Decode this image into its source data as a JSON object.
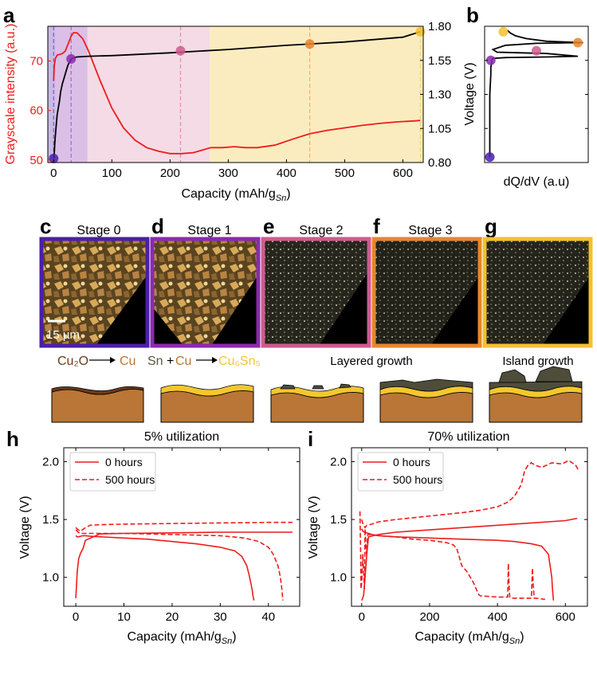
{
  "panel_letters": [
    "a",
    "b",
    "c",
    "d",
    "e",
    "f",
    "g",
    "h",
    "i"
  ],
  "colors": {
    "red": "#ee1c1c",
    "black": "#000000",
    "stage0": "#4b1fa8",
    "stage1": "#8a2ab0",
    "stage2": "#cf5a8e",
    "stage3": "#e8852f",
    "stage4": "#f2c12e",
    "cu": "#b97636",
    "tin": "#5a5640",
    "cu6sn5": "#f4c72f",
    "cu2o": "#6b3a1c"
  },
  "stages": [
    {
      "label": "Stage 0",
      "color": "#4b1fa8"
    },
    {
      "label": "Stage 1",
      "color": "#8a2ab0"
    },
    {
      "label": "Stage 2",
      "color": "#cf5a8e"
    },
    {
      "label": "Stage 3",
      "color": "#f2c12e"
    },
    {
      "label": "",
      "color": "#f2c12e"
    }
  ],
  "scale_bar": "15 µm",
  "reactions": {
    "r1_left": "Cu₂O",
    "r1_right": "Cu",
    "r2_sn": "Sn",
    "r2_plus": "+",
    "r2_cu": "Cu",
    "r2_right": "Cu₆Sn₅",
    "layered": "Layered growth",
    "island": "Island growth"
  },
  "chart_data": [
    {
      "panel": "a",
      "type": "line",
      "xlabel": "Capacity (mAh/g",
      "xlabel_sub": "Sn",
      "xlabel_end": ")",
      "ylabel_left": "Grayscale intensity (a.u.)",
      "ylabel_right": "Voltage (V)",
      "xlim": [
        -10,
        635
      ],
      "ylim_left": [
        49.5,
        77
      ],
      "ylim_right": [
        0.8,
        1.8
      ],
      "xticks": [
        0,
        100,
        200,
        300,
        400,
        500,
        600
      ],
      "yticks_left": [
        50,
        60,
        70
      ],
      "yticks_right": [
        0.8,
        1.05,
        1.3,
        1.55,
        1.8
      ],
      "stage_regions": [
        [
          -10,
          3
        ],
        [
          3,
          58
        ],
        [
          58,
          268
        ],
        [
          268,
          635
        ]
      ],
      "stage_lines": [
        0,
        30,
        218,
        440,
        630
      ],
      "series": [
        {
          "axis": "left",
          "color": "#ee1c1c",
          "x": [
            0,
            1,
            3,
            6,
            10,
            15,
            20,
            25,
            30,
            34,
            40,
            50,
            60,
            80,
            100,
            120,
            140,
            160,
            180,
            200,
            220,
            240,
            255,
            270,
            290,
            310,
            330,
            350,
            380,
            410,
            440,
            470,
            500,
            530,
            560,
            590,
            620,
            630
          ],
          "y": [
            66,
            69,
            70.5,
            71.2,
            71.3,
            71.5,
            72,
            73.5,
            75,
            75.7,
            75.7,
            74.5,
            72,
            66,
            60.5,
            56.5,
            54,
            52.5,
            51.8,
            51.3,
            51.3,
            51.5,
            52,
            52.5,
            52.5,
            52.7,
            52.5,
            52.5,
            53,
            54.2,
            55.3,
            56,
            56.5,
            57,
            57.4,
            57.7,
            57.9,
            58
          ]
        },
        {
          "axis": "right",
          "color": "#000000",
          "x": [
            0,
            1,
            2,
            4,
            6,
            8,
            10,
            12,
            15,
            18,
            20,
            22,
            25,
            28,
            30,
            35,
            40,
            60,
            100,
            200,
            300,
            400,
            500,
            600,
            630
          ],
          "y": [
            0.83,
            0.86,
            0.95,
            1.05,
            1.15,
            1.2,
            1.25,
            1.32,
            1.38,
            1.42,
            1.45,
            1.48,
            1.52,
            1.54,
            1.56,
            1.57,
            1.575,
            1.58,
            1.585,
            1.605,
            1.63,
            1.66,
            1.685,
            1.72,
            1.76
          ]
        }
      ],
      "markers": [
        {
          "x": 0,
          "y": 0.83,
          "axis": "right",
          "color": "#4b1fa8"
        },
        {
          "x": 30,
          "y": 1.56,
          "axis": "right",
          "color": "#8a2ab0"
        },
        {
          "x": 218,
          "y": 1.62,
          "axis": "right",
          "color": "#cf5a8e"
        },
        {
          "x": 440,
          "y": 1.67,
          "axis": "right",
          "color": "#e8852f"
        },
        {
          "x": 630,
          "y": 1.76,
          "axis": "right",
          "color": "#f2c12e"
        }
      ]
    },
    {
      "panel": "b",
      "type": "line",
      "xlabel": "dQ/dV (a.u)",
      "ylim": [
        0.8,
        1.8
      ],
      "series": [
        {
          "color": "#000000",
          "x": [
            0.05,
            0.05,
            0.05,
            0.06,
            0.06,
            0.07,
            0.07,
            0.08,
            0.2,
            0.6,
            0.9,
            0.6,
            0.12,
            0.08,
            0.2,
            0.5,
            0.95,
            0.6,
            0.4,
            0.3,
            0.25,
            0.22
          ],
          "y": [
            0.84,
            1.05,
            1.3,
            1.45,
            1.5,
            1.54,
            1.555,
            1.565,
            1.57,
            1.575,
            1.58,
            1.6,
            1.61,
            1.63,
            1.66,
            1.675,
            1.68,
            1.69,
            1.71,
            1.73,
            1.75,
            1.77
          ]
        }
      ],
      "markers": [
        {
          "x": 0.05,
          "y": 0.84,
          "color": "#4b1fa8"
        },
        {
          "x": 0.06,
          "y": 1.55,
          "color": "#8a2ab0"
        },
        {
          "x": 0.5,
          "y": 1.62,
          "color": "#cf5a8e"
        },
        {
          "x": 0.9,
          "y": 1.68,
          "color": "#e8852f"
        },
        {
          "x": 0.18,
          "y": 1.76,
          "color": "#f2c12e"
        }
      ]
    },
    {
      "panel": "h",
      "type": "line",
      "title": "5% utilization",
      "xlabel": "Capacity (mAh/g",
      "xlabel_sub": "Sn",
      "xlabel_end": ")",
      "ylabel": "Voltage (V)",
      "xlim": [
        -2.5,
        46.5
      ],
      "ylim": [
        0.75,
        2.12
      ],
      "xticks": [
        0,
        10,
        20,
        30,
        40
      ],
      "yticks": [
        1.0,
        1.5,
        2.0
      ],
      "legend": [
        "0 hours",
        "500 hours"
      ],
      "series": [
        {
          "name": "0 hours",
          "color": "#ee1c1c",
          "dash": false,
          "x": [
            0,
            0.3,
            0.6,
            1,
            1.5,
            2,
            3,
            5,
            10,
            15,
            20,
            25,
            30,
            33,
            34.5,
            35.5,
            36,
            36.3,
            36.6,
            36.8,
            37,
            37,
            null,
            0,
            0.3,
            0.6,
            1,
            1.5,
            2,
            5,
            10,
            20,
            30,
            40,
            45
          ],
          "y": [
            1.36,
            1.35,
            1.35,
            1.355,
            1.36,
            1.36,
            1.355,
            1.35,
            1.34,
            1.33,
            1.31,
            1.29,
            1.26,
            1.23,
            1.18,
            1.1,
            1.02,
            0.96,
            0.9,
            0.84,
            0.8,
            0.8,
            null,
            0.82,
            1.05,
            1.16,
            1.21,
            1.25,
            1.32,
            1.375,
            1.38,
            1.385,
            1.39,
            1.39,
            1.39
          ]
        },
        {
          "name": "500 hours",
          "color": "#ee1c1c",
          "dash": true,
          "x": [
            0,
            0.5,
            1,
            2,
            3,
            5,
            10,
            20,
            30,
            35,
            38,
            40,
            41,
            42,
            42.5,
            42.8,
            43,
            null,
            0,
            0.5,
            1,
            2,
            3,
            5,
            10,
            20,
            30,
            40,
            45
          ],
          "y": [
            1.41,
            1.39,
            1.38,
            1.38,
            1.38,
            1.38,
            1.38,
            1.37,
            1.36,
            1.34,
            1.31,
            1.26,
            1.2,
            1.1,
            1.0,
            0.9,
            0.8,
            null,
            1.43,
            1.41,
            1.4,
            1.43,
            1.45,
            1.455,
            1.46,
            1.465,
            1.47,
            1.475,
            1.475
          ]
        }
      ]
    },
    {
      "panel": "i",
      "type": "line",
      "title": "70% utilization",
      "xlabel": "Capacity (mAh/g",
      "xlabel_sub": "Sn",
      "xlabel_end": ")",
      "ylabel": "Voltage (V)",
      "xlim": [
        -30,
        665
      ],
      "ylim": [
        0.75,
        2.12
      ],
      "xticks": [
        0,
        200,
        400,
        600
      ],
      "yticks": [
        1.0,
        1.5,
        2.0
      ],
      "legend": [
        "0 hours",
        "500 hours"
      ],
      "series": [
        {
          "name": "0 hours",
          "color": "#ee1c1c",
          "dash": false,
          "x": [
            0,
            3,
            8,
            15,
            20,
            30,
            50,
            100,
            200,
            300,
            400,
            450,
            500,
            530,
            550,
            555,
            560,
            562,
            565,
            null,
            0,
            3,
            6,
            10,
            15,
            20,
            50,
            100,
            200,
            300,
            400,
            500,
            600,
            635
          ],
          "y": [
            1.42,
            1.4,
            1.39,
            1.385,
            1.38,
            1.37,
            1.36,
            1.35,
            1.34,
            1.33,
            1.32,
            1.31,
            1.29,
            1.27,
            1.2,
            1.1,
            1.0,
            0.9,
            0.8,
            null,
            0.8,
            0.82,
            0.85,
            1.0,
            1.2,
            1.35,
            1.37,
            1.39,
            1.41,
            1.43,
            1.45,
            1.47,
            1.49,
            1.51
          ]
        },
        {
          "name": "500 hours",
          "color": "#ee1c1c",
          "dash": true,
          "x": [
            -5,
            -3,
            -2,
            0,
            3,
            5,
            8,
            10,
            14,
            18,
            25,
            50,
            100,
            150,
            200,
            250,
            270,
            280,
            285,
            295,
            310,
            320,
            330,
            340,
            345,
            350,
            400,
            430,
            432,
            434,
            436,
            440,
            500,
            503,
            505,
            508,
            512,
            540,
            null,
            0,
            5,
            10,
            15,
            30,
            50,
            100,
            200,
            300,
            350,
            400,
            430,
            450,
            470,
            480,
            490,
            500,
            510,
            530,
            560,
            590,
            610,
            630,
            640
          ],
          "y": [
            1.57,
            1.2,
            0.9,
            0.95,
            1.2,
            1.1,
            0.9,
            1.42,
            1.2,
            1.37,
            1.37,
            1.36,
            1.35,
            1.33,
            1.32,
            1.3,
            1.28,
            1.25,
            1.2,
            1.1,
            1.05,
            1.0,
            0.95,
            0.88,
            0.85,
            0.84,
            0.83,
            0.83,
            1.12,
            0.95,
            0.83,
            0.82,
            0.82,
            1.08,
            0.95,
            0.82,
            0.82,
            0.81,
            null,
            1.5,
            1.45,
            1.43,
            1.45,
            1.46,
            1.48,
            1.5,
            1.53,
            1.56,
            1.58,
            1.61,
            1.65,
            1.7,
            1.8,
            1.92,
            1.97,
            1.99,
            1.97,
            1.95,
            1.99,
            1.98,
            2.01,
            1.97,
            1.92
          ]
        }
      ]
    }
  ]
}
